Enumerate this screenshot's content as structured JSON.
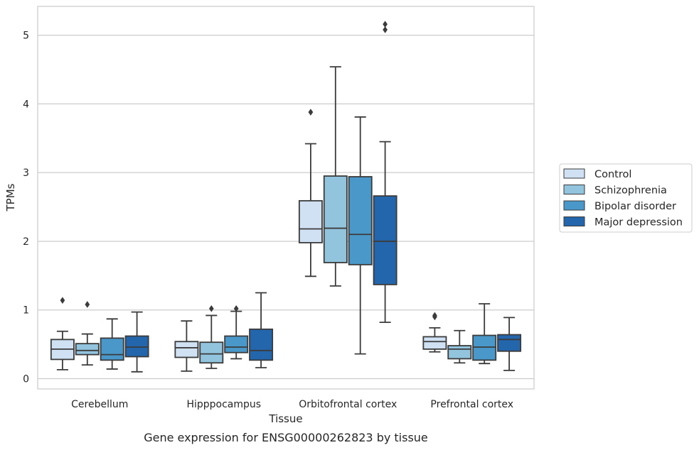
{
  "chart_data": {
    "type": "box",
    "title": "",
    "caption": "Gene expression for ENSG00000262823 by tissue",
    "xlabel": "Tissue",
    "ylabel": "TPMs",
    "ylim": [
      -0.15,
      5.42
    ],
    "yticks": [
      0,
      1,
      2,
      3,
      4,
      5
    ],
    "grid": "horizontal",
    "legend_position": "right",
    "categories": [
      "Cerebellum",
      "Hipppocampus",
      "Orbitofrontal cortex",
      "Prefrontal cortex"
    ],
    "series": [
      {
        "name": "Control",
        "color": "#cfe1f2",
        "boxes": [
          {
            "whislo": 0.13,
            "q1": 0.28,
            "med": 0.43,
            "q3": 0.57,
            "whishi": 0.69,
            "fliers": [
              1.14
            ]
          },
          {
            "whislo": 0.11,
            "q1": 0.31,
            "med": 0.45,
            "q3": 0.54,
            "whishi": 0.84,
            "fliers": []
          },
          {
            "whislo": 1.49,
            "q1": 1.98,
            "med": 2.18,
            "q3": 2.59,
            "whishi": 3.42,
            "fliers": [
              3.88
            ]
          },
          {
            "whislo": 0.39,
            "q1": 0.43,
            "med": 0.54,
            "q3": 0.61,
            "whishi": 0.74,
            "fliers": [
              0.9,
              0.92
            ]
          }
        ]
      },
      {
        "name": "Schizophrenia",
        "color": "#93c4de",
        "boxes": [
          {
            "whislo": 0.2,
            "q1": 0.35,
            "med": 0.41,
            "q3": 0.51,
            "whishi": 0.65,
            "fliers": [
              1.08
            ]
          },
          {
            "whislo": 0.15,
            "q1": 0.23,
            "med": 0.36,
            "q3": 0.53,
            "whishi": 0.92,
            "fliers": [
              1.02
            ]
          },
          {
            "whislo": 1.35,
            "q1": 1.69,
            "med": 2.19,
            "q3": 2.95,
            "whishi": 4.54,
            "fliers": []
          },
          {
            "whislo": 0.23,
            "q1": 0.29,
            "med": 0.43,
            "q3": 0.48,
            "whishi": 0.7,
            "fliers": []
          }
        ]
      },
      {
        "name": "Bipolar disorder",
        "color": "#4a98c9",
        "boxes": [
          {
            "whislo": 0.14,
            "q1": 0.27,
            "med": 0.35,
            "q3": 0.59,
            "whishi": 0.87,
            "fliers": []
          },
          {
            "whislo": 0.29,
            "q1": 0.38,
            "med": 0.46,
            "q3": 0.62,
            "whishi": 0.98,
            "fliers": [
              1.02
            ]
          },
          {
            "whislo": 0.36,
            "q1": 1.66,
            "med": 2.1,
            "q3": 2.94,
            "whishi": 3.81,
            "fliers": []
          },
          {
            "whislo": 0.22,
            "q1": 0.27,
            "med": 0.46,
            "q3": 0.63,
            "whishi": 1.09,
            "fliers": []
          }
        ]
      },
      {
        "name": "Major depression",
        "color": "#2366ac",
        "boxes": [
          {
            "whislo": 0.1,
            "q1": 0.32,
            "med": 0.46,
            "q3": 0.62,
            "whishi": 0.97,
            "fliers": []
          },
          {
            "whislo": 0.16,
            "q1": 0.27,
            "med": 0.41,
            "q3": 0.72,
            "whishi": 1.25,
            "fliers": []
          },
          {
            "whislo": 0.82,
            "q1": 1.37,
            "med": 2.0,
            "q3": 2.66,
            "whishi": 3.45,
            "fliers": [
              5.08,
              5.16
            ]
          },
          {
            "whislo": 0.12,
            "q1": 0.4,
            "med": 0.57,
            "q3": 0.64,
            "whishi": 0.89,
            "fliers": []
          }
        ]
      }
    ]
  }
}
